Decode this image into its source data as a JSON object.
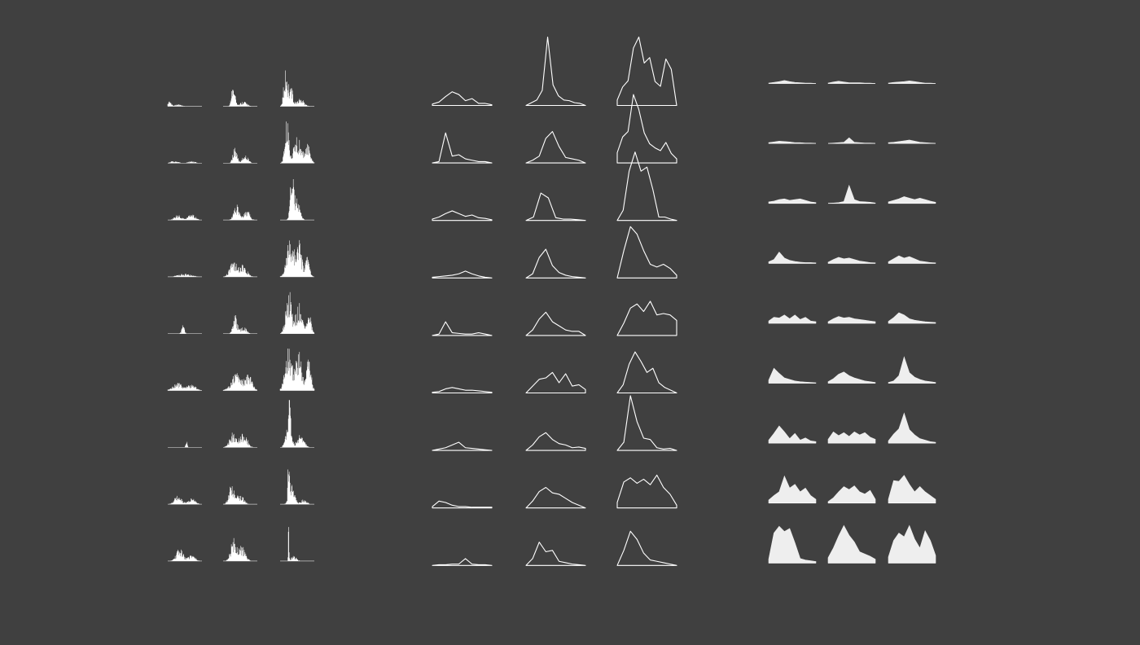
{
  "colors": {
    "background": "#404040",
    "mark": "#ffffff",
    "area_fill": "#eeeeee"
  },
  "chart_data": [
    {
      "type": "bar",
      "name": "histogram-panel",
      "rows": 9,
      "cols": 3,
      "y_range": [
        0,
        1
      ],
      "x_range": [
        0,
        1
      ],
      "series": [
        [
          {
            "peaks": [
              [
                0.05,
                0.1,
                0.05
              ],
              [
                0.3,
                0.04,
                0.1
              ]
            ]
          },
          {
            "peaks": [
              [
                0.3,
                0.45,
                0.05
              ],
              [
                0.6,
                0.1,
                0.1
              ]
            ]
          },
          {
            "peaks": [
              [
                0.15,
                0.7,
                0.05
              ],
              [
                0.3,
                0.45,
                0.07
              ],
              [
                0.6,
                0.15,
                0.1
              ]
            ]
          }
        ],
        [
          {
            "peaks": [
              [
                0.2,
                0.05,
                0.1
              ],
              [
                0.7,
                0.04,
                0.1
              ]
            ]
          },
          {
            "peaks": [
              [
                0.35,
                0.35,
                0.06
              ],
              [
                0.65,
                0.2,
                0.08
              ]
            ]
          },
          {
            "peaks": [
              [
                0.2,
                0.85,
                0.06
              ],
              [
                0.5,
                0.55,
                0.1
              ],
              [
                0.8,
                0.4,
                0.08
              ]
            ]
          }
        ],
        [
          {
            "peaks": [
              [
                0.3,
                0.1,
                0.1
              ],
              [
                0.7,
                0.12,
                0.1
              ]
            ]
          },
          {
            "peaks": [
              [
                0.4,
                0.3,
                0.08
              ],
              [
                0.7,
                0.2,
                0.08
              ]
            ]
          },
          {
            "peaks": [
              [
                0.35,
                1.0,
                0.05
              ],
              [
                0.5,
                0.4,
                0.08
              ]
            ]
          }
        ],
        [
          {
            "peaks": [
              [
                0.5,
                0.06,
                0.2
              ]
            ]
          },
          {
            "peaks": [
              [
                0.3,
                0.35,
                0.1
              ],
              [
                0.6,
                0.25,
                0.1
              ]
            ]
          },
          {
            "peaks": [
              [
                0.3,
                0.8,
                0.1
              ],
              [
                0.55,
                0.7,
                0.08
              ],
              [
                0.8,
                0.4,
                0.06
              ]
            ]
          }
        ],
        [
          {
            "peaks": [
              [
                0.45,
                0.18,
                0.04
              ]
            ]
          },
          {
            "peaks": [
              [
                0.35,
                0.4,
                0.06
              ],
              [
                0.6,
                0.15,
                0.08
              ]
            ]
          },
          {
            "peaks": [
              [
                0.25,
                0.9,
                0.08
              ],
              [
                0.55,
                0.6,
                0.1
              ],
              [
                0.85,
                0.4,
                0.06
              ]
            ]
          }
        ],
        [
          {
            "peaks": [
              [
                0.3,
                0.15,
                0.15
              ],
              [
                0.7,
                0.12,
                0.12
              ]
            ]
          },
          {
            "peaks": [
              [
                0.4,
                0.35,
                0.15
              ],
              [
                0.75,
                0.3,
                0.1
              ]
            ]
          },
          {
            "peaks": [
              [
                0.25,
                0.85,
                0.1
              ],
              [
                0.55,
                0.75,
                0.1
              ],
              [
                0.85,
                0.8,
                0.06
              ]
            ]
          }
        ],
        [
          {
            "peaks": [
              [
                0.55,
                0.2,
                0.02
              ]
            ]
          },
          {
            "peaks": [
              [
                0.3,
                0.3,
                0.1
              ],
              [
                0.6,
                0.3,
                0.1
              ]
            ]
          },
          {
            "peaks": [
              [
                0.25,
                0.45,
                0.08
              ],
              [
                0.28,
                0.95,
                0.02
              ],
              [
                0.6,
                0.25,
                0.1
              ]
            ]
          }
        ],
        [
          {
            "peaks": [
              [
                0.3,
                0.2,
                0.1
              ],
              [
                0.7,
                0.12,
                0.1
              ]
            ]
          },
          {
            "peaks": [
              [
                0.25,
                0.4,
                0.08
              ],
              [
                0.5,
                0.2,
                0.1
              ]
            ]
          },
          {
            "peaks": [
              [
                0.25,
                1.0,
                0.02
              ],
              [
                0.35,
                0.4,
                0.08
              ],
              [
                0.7,
                0.1,
                0.08
              ]
            ]
          }
        ],
        [
          {
            "peaks": [
              [
                0.35,
                0.25,
                0.1
              ],
              [
                0.7,
                0.12,
                0.1
              ]
            ]
          },
          {
            "peaks": [
              [
                0.3,
                0.45,
                0.08
              ],
              [
                0.55,
                0.3,
                0.1
              ]
            ]
          },
          {
            "peaks": [
              [
                0.25,
                1.0,
                0.01
              ],
              [
                0.4,
                0.1,
                0.08
              ]
            ]
          }
        ]
      ]
    },
    {
      "type": "line",
      "name": "line-panel",
      "rows": 9,
      "cols": 3,
      "y_range": [
        0,
        1
      ],
      "x_range": [
        0,
        1
      ],
      "series": [
        [
          [
            0.02,
            0.05,
            0.13,
            0.2,
            0.16,
            0.07,
            0.1,
            0.03,
            0.03,
            0.01
          ],
          [
            0,
            0.04,
            0.08,
            0.22,
            1.0,
            0.3,
            0.14,
            0.08,
            0.07,
            0.04,
            0.03,
            0
          ],
          [
            0.08,
            0.27,
            0.36,
            0.84,
            1.0,
            0.62,
            0.7,
            0.35,
            0.28,
            0.68,
            0.53,
            0
          ]
        ],
        [
          [
            0,
            0.02,
            0.44,
            0.1,
            0.12,
            0.06,
            0.04,
            0.02,
            0.02,
            0
          ],
          [
            0,
            0.04,
            0.1,
            0.36,
            0.46,
            0.24,
            0.08,
            0.06,
            0.04,
            0
          ],
          [
            0.15,
            0.38,
            0.46,
            1.0,
            0.78,
            0.44,
            0.28,
            0.22,
            0.18,
            0.3,
            0.14,
            0.06
          ]
        ],
        [
          [
            0.02,
            0.05,
            0.1,
            0.14,
            0.1,
            0.06,
            0.08,
            0.04,
            0.03,
            0.01
          ],
          [
            0,
            0.05,
            0.4,
            0.33,
            0.04,
            0.02,
            0.02,
            0.01,
            0
          ],
          [
            0,
            0.15,
            0.72,
            1.0,
            0.72,
            0.78,
            0.45,
            0.05,
            0.05,
            0.02,
            0
          ]
        ],
        [
          [
            0.01,
            0.02,
            0.03,
            0.04,
            0.06,
            0.1,
            0.06,
            0.03,
            0.01,
            0
          ],
          [
            0,
            0.06,
            0.3,
            0.42,
            0.18,
            0.08,
            0.04,
            0.02,
            0.01,
            0
          ],
          [
            0,
            0.4,
            0.75,
            0.64,
            0.4,
            0.2,
            0.16,
            0.2,
            0.14,
            0.04
          ]
        ],
        [
          [
            0,
            0.02,
            0.2,
            0.04,
            0.03,
            0.02,
            0.02,
            0.04,
            0.02,
            0
          ],
          [
            0,
            0.08,
            0.24,
            0.34,
            0.2,
            0.14,
            0.08,
            0.06,
            0.06,
            0
          ],
          [
            0,
            0.18,
            0.4,
            0.46,
            0.35,
            0.5,
            0.3,
            0.32,
            0.3,
            0.22
          ]
        ],
        [
          [
            0.01,
            0.02,
            0.06,
            0.08,
            0.06,
            0.04,
            0.04,
            0.03,
            0.02,
            0.01
          ],
          [
            0,
            0.1,
            0.2,
            0.22,
            0.3,
            0.15,
            0.28,
            0.1,
            0.12,
            0.05
          ],
          [
            0,
            0.12,
            0.42,
            0.6,
            0.46,
            0.3,
            0.36,
            0.15,
            0.08,
            0.04,
            0
          ]
        ],
        [
          [
            0,
            0.02,
            0.04,
            0.08,
            0.12,
            0.04,
            0.03,
            0.02,
            0.01,
            0
          ],
          [
            0,
            0.08,
            0.2,
            0.26,
            0.16,
            0.1,
            0.08,
            0.04,
            0.05,
            0.03
          ],
          [
            0,
            0.12,
            0.8,
            0.42,
            0.18,
            0.16,
            0.04,
            0.02,
            0.03,
            0
          ]
        ],
        [
          [
            0.02,
            0.1,
            0.08,
            0.04,
            0.02,
            0.02,
            0.01,
            0.01,
            0.01,
            0.01
          ],
          [
            0,
            0.1,
            0.24,
            0.3,
            0.22,
            0.2,
            0.14,
            0.08,
            0.04,
            0
          ],
          [
            0.08,
            0.38,
            0.44,
            0.36,
            0.42,
            0.34,
            0.48,
            0.3,
            0.2,
            0.04
          ]
        ],
        [
          [
            0,
            0.01,
            0.01,
            0.02,
            0.02,
            0.1,
            0.02,
            0.01,
            0.01,
            0
          ],
          [
            0,
            0.1,
            0.34,
            0.2,
            0.22,
            0.06,
            0.04,
            0.02,
            0.01,
            0
          ],
          [
            0,
            0.22,
            0.5,
            0.38,
            0.18,
            0.08,
            0.06,
            0.04,
            0.02,
            0
          ]
        ]
      ]
    },
    {
      "type": "area",
      "name": "area-panel",
      "rows": 9,
      "cols": 3,
      "y_range": [
        0,
        1
      ],
      "x_range": [
        0,
        1
      ],
      "series": [
        [
          [
            0.01,
            0.03,
            0.05,
            0.08,
            0.05,
            0.03,
            0.02,
            0.01,
            0.01,
            0
          ],
          [
            0.01,
            0.04,
            0.06,
            0.04,
            0.02,
            0.02,
            0.02,
            0.01,
            0.01,
            0
          ],
          [
            0.01,
            0.03,
            0.04,
            0.05,
            0.07,
            0.05,
            0.03,
            0.01,
            0.01,
            0
          ]
        ],
        [
          [
            0.02,
            0.04,
            0.06,
            0.05,
            0.04,
            0.02,
            0.02,
            0.01,
            0.01,
            0
          ],
          [
            0,
            0.01,
            0.02,
            0.03,
            0.15,
            0.03,
            0.02,
            0.01,
            0.01,
            0
          ],
          [
            0.02,
            0.03,
            0.05,
            0.07,
            0.09,
            0.06,
            0.03,
            0.02,
            0.01,
            0
          ]
        ],
        [
          [
            0.04,
            0.06,
            0.1,
            0.12,
            0.08,
            0.1,
            0.12,
            0.08,
            0.04,
            0.02
          ],
          [
            0,
            0.01,
            0.02,
            0.05,
            0.48,
            0.1,
            0.05,
            0.04,
            0.03,
            0.01
          ],
          [
            0.04,
            0.08,
            0.12,
            0.18,
            0.14,
            0.1,
            0.14,
            0.1,
            0.06,
            0.03
          ]
        ],
        [
          [
            0.04,
            0.1,
            0.3,
            0.14,
            0.08,
            0.05,
            0.03,
            0.02,
            0.02,
            0.01
          ],
          [
            0.03,
            0.1,
            0.16,
            0.12,
            0.14,
            0.1,
            0.06,
            0.04,
            0.02,
            0.01
          ],
          [
            0.04,
            0.12,
            0.2,
            0.14,
            0.18,
            0.12,
            0.06,
            0.04,
            0.02,
            0.01
          ]
        ],
        [
          [
            0.06,
            0.16,
            0.14,
            0.22,
            0.12,
            0.22,
            0.1,
            0.16,
            0.06,
            0.04
          ],
          [
            0.04,
            0.12,
            0.18,
            0.14,
            0.16,
            0.12,
            0.1,
            0.08,
            0.06,
            0.04
          ],
          [
            0.05,
            0.15,
            0.28,
            0.22,
            0.12,
            0.08,
            0.06,
            0.04,
            0.03,
            0.02
          ]
        ],
        [
          [
            0.08,
            0.4,
            0.26,
            0.14,
            0.1,
            0.06,
            0.04,
            0.03,
            0.02,
            0.01
          ],
          [
            0.04,
            0.12,
            0.24,
            0.3,
            0.2,
            0.14,
            0.1,
            0.06,
            0.04,
            0.02
          ],
          [
            0.02,
            0.06,
            0.2,
            0.7,
            0.28,
            0.16,
            0.1,
            0.06,
            0.04,
            0.02
          ]
        ],
        [
          [
            0.08,
            0.26,
            0.46,
            0.3,
            0.12,
            0.26,
            0.08,
            0.14,
            0.06,
            0.04
          ],
          [
            0.1,
            0.3,
            0.2,
            0.28,
            0.18,
            0.3,
            0.22,
            0.28,
            0.16,
            0.1
          ],
          [
            0.06,
            0.24,
            0.38,
            0.8,
            0.36,
            0.22,
            0.12,
            0.08,
            0.04,
            0.02
          ]
        ],
        [
          [
            0.08,
            0.2,
            0.3,
            0.72,
            0.4,
            0.5,
            0.3,
            0.4,
            0.2,
            0.1
          ],
          [
            0.04,
            0.14,
            0.3,
            0.44,
            0.36,
            0.46,
            0.3,
            0.24,
            0.34,
            0.1
          ],
          [
            0.1,
            0.6,
            0.58,
            0.74,
            0.5,
            0.3,
            0.44,
            0.3,
            0.2,
            0.1
          ]
        ],
        [
          [
            0.1,
            0.8,
            0.98,
            0.84,
            0.92,
            0.54,
            0.12,
            0.08,
            0.06,
            0.04
          ],
          [
            0.14,
            0.4,
            0.72,
            1.0,
            0.74,
            0.56,
            0.3,
            0.24,
            0.18,
            0.1
          ],
          [
            0.16,
            0.6,
            0.8,
            0.7,
            1.0,
            0.64,
            0.4,
            0.86,
            0.6,
            0.2
          ]
        ]
      ]
    }
  ]
}
